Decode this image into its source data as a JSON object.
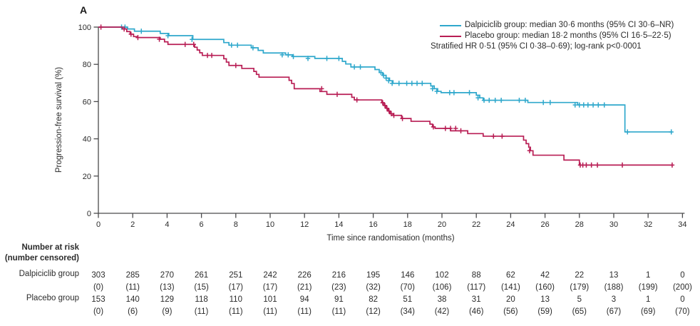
{
  "panel_label": "A",
  "legend": {
    "entries": [
      {
        "label": "Dalpiciclib group: median 30·6 months (95% CI 30·6–NR)",
        "color": "#2fa8cc"
      },
      {
        "label": "Placebo group: median 18·2 months (95% CI 16·5–22·5)",
        "color": "#b81d54"
      }
    ],
    "note": "Stratified HR 0·51 (95% CI 0·38–0·69); log-rank p<0·0001"
  },
  "chart_data": {
    "type": "line",
    "subtype": "kaplan-meier-step",
    "xlabel": "Time since randomisation (months)",
    "ylabel": "Progression-free survival (%)",
    "xlim": [
      0,
      34
    ],
    "ylim": [
      0,
      100
    ],
    "x_ticks": [
      0,
      2,
      4,
      6,
      8,
      10,
      12,
      14,
      16,
      18,
      20,
      22,
      24,
      26,
      28,
      30,
      32,
      34
    ],
    "y_ticks": [
      0,
      20,
      40,
      60,
      80,
      100
    ],
    "grid": false,
    "legend_position": "top-right",
    "axis_color": "#4a4a4c",
    "series": [
      {
        "name": "Dalpiciclib group",
        "color": "#2fa8cc",
        "end_t": 33.4,
        "steps": [
          [
            0,
            100
          ],
          [
            1.7,
            99
          ],
          [
            2.1,
            97.8
          ],
          [
            3.6,
            96.6
          ],
          [
            4.1,
            95.4
          ],
          [
            5.5,
            93.4
          ],
          [
            7.3,
            91.7
          ],
          [
            7.6,
            90.3
          ],
          [
            8.9,
            88.9
          ],
          [
            9.3,
            87.5
          ],
          [
            9.6,
            86.1
          ],
          [
            10.9,
            85.1
          ],
          [
            11.3,
            84.2
          ],
          [
            12.6,
            83.2
          ],
          [
            14.2,
            81.6
          ],
          [
            14.4,
            80.2
          ],
          [
            14.7,
            78.6
          ],
          [
            16.1,
            77.2
          ],
          [
            16.35,
            75.6
          ],
          [
            16.55,
            74.1
          ],
          [
            16.75,
            72.6
          ],
          [
            16.95,
            71.2
          ],
          [
            17.15,
            69.8
          ],
          [
            19.35,
            68.4
          ],
          [
            19.55,
            66.9
          ],
          [
            19.75,
            65.5
          ],
          [
            19.95,
            64.8
          ],
          [
            22,
            63.4
          ],
          [
            22.2,
            62
          ],
          [
            22.4,
            60.7
          ],
          [
            25,
            59.5
          ],
          [
            27.9,
            58.2
          ],
          [
            30.65,
            43.7
          ]
        ],
        "censors": [
          [
            1.35,
            100
          ],
          [
            1.55,
            100
          ],
          [
            2.5,
            97.8
          ],
          [
            4.05,
            95.4
          ],
          [
            5.45,
            93.4
          ],
          [
            7.75,
            90.3
          ],
          [
            8.1,
            90.3
          ],
          [
            9,
            88.9
          ],
          [
            10.7,
            85.1
          ],
          [
            11.05,
            85.1
          ],
          [
            11.35,
            84.2
          ],
          [
            12.2,
            83.2
          ],
          [
            13.3,
            83.2
          ],
          [
            14,
            83.2
          ],
          [
            14.9,
            78.6
          ],
          [
            15.25,
            78.6
          ],
          [
            16.45,
            75.6
          ],
          [
            16.6,
            74.1
          ],
          [
            16.75,
            72.6
          ],
          [
            16.9,
            71.2
          ],
          [
            17.1,
            69.8
          ],
          [
            17.5,
            69.8
          ],
          [
            17.95,
            69.8
          ],
          [
            18.25,
            69.8
          ],
          [
            18.55,
            69.8
          ],
          [
            18.85,
            69.8
          ],
          [
            19.45,
            66.9
          ],
          [
            19.7,
            65.5
          ],
          [
            20.45,
            64.8
          ],
          [
            20.7,
            64.8
          ],
          [
            21.6,
            64.8
          ],
          [
            22.1,
            62
          ],
          [
            22.45,
            60.7
          ],
          [
            22.75,
            60.7
          ],
          [
            23.1,
            60.7
          ],
          [
            23.45,
            60.7
          ],
          [
            24.5,
            60.7
          ],
          [
            24.85,
            60.7
          ],
          [
            25.9,
            59.5
          ],
          [
            26.3,
            59.5
          ],
          [
            27.75,
            58.2
          ],
          [
            28,
            58.2
          ],
          [
            28.25,
            58.2
          ],
          [
            28.5,
            58.2
          ],
          [
            28.8,
            58.2
          ],
          [
            29.1,
            58.2
          ],
          [
            29.45,
            58.2
          ],
          [
            30.8,
            43.7
          ],
          [
            33.35,
            43.7
          ]
        ]
      },
      {
        "name": "Placebo group",
        "color": "#b81d54",
        "end_t": 33.45,
        "steps": [
          [
            0,
            100
          ],
          [
            1.4,
            99
          ],
          [
            1.65,
            97.6
          ],
          [
            1.85,
            96.2
          ],
          [
            2.05,
            94.9
          ],
          [
            2.25,
            94.4
          ],
          [
            3.6,
            93.5
          ],
          [
            3.85,
            92.1
          ],
          [
            4.05,
            90.7
          ],
          [
            5.6,
            89.2
          ],
          [
            5.75,
            87.7
          ],
          [
            5.9,
            86.2
          ],
          [
            6.05,
            84.8
          ],
          [
            7.3,
            83
          ],
          [
            7.45,
            81.2
          ],
          [
            7.6,
            79.4
          ],
          [
            8.35,
            77.8
          ],
          [
            9.05,
            76.2
          ],
          [
            9.2,
            74.6
          ],
          [
            9.35,
            73.1
          ],
          [
            11.1,
            71.4
          ],
          [
            11.25,
            69.7
          ],
          [
            11.4,
            66.9
          ],
          [
            12.9,
            65.4
          ],
          [
            13.3,
            63.9
          ],
          [
            14.75,
            62.3
          ],
          [
            14.9,
            60.9
          ],
          [
            16.5,
            59.4
          ],
          [
            16.62,
            57.9
          ],
          [
            16.74,
            56.4
          ],
          [
            16.86,
            54.9
          ],
          [
            16.98,
            53.5
          ],
          [
            17.15,
            52.6
          ],
          [
            17.65,
            50.9
          ],
          [
            18.2,
            49.4
          ],
          [
            19.3,
            47.9
          ],
          [
            19.45,
            46.4
          ],
          [
            19.6,
            45.6
          ],
          [
            20.5,
            44.3
          ],
          [
            21.5,
            42.8
          ],
          [
            22.4,
            41.4
          ],
          [
            24.75,
            39.3
          ],
          [
            24.9,
            37.4
          ],
          [
            25.05,
            35.5
          ],
          [
            25.15,
            33.6
          ],
          [
            25.3,
            31.2
          ],
          [
            27.1,
            28.6
          ],
          [
            28,
            25.9
          ]
        ],
        "censors": [
          [
            0.15,
            100
          ],
          [
            1.5,
            99
          ],
          [
            1.9,
            96.2
          ],
          [
            2.3,
            94.4
          ],
          [
            3.55,
            93.5
          ],
          [
            5.05,
            90.7
          ],
          [
            5.55,
            90.7
          ],
          [
            6.35,
            84.8
          ],
          [
            6.6,
            84.8
          ],
          [
            8,
            79.4
          ],
          [
            13,
            66.9
          ],
          [
            13.9,
            63.9
          ],
          [
            15.05,
            60.9
          ],
          [
            16.55,
            59.4
          ],
          [
            16.68,
            57.9
          ],
          [
            16.8,
            56.4
          ],
          [
            16.92,
            54.9
          ],
          [
            17.05,
            53.5
          ],
          [
            17.2,
            52.6
          ],
          [
            17.7,
            50.9
          ],
          [
            19.5,
            46.4
          ],
          [
            20.2,
            45.6
          ],
          [
            20.5,
            45.6
          ],
          [
            20.8,
            45.6
          ],
          [
            21.1,
            44.3
          ],
          [
            23,
            41.4
          ],
          [
            23.5,
            41.4
          ],
          [
            25.1,
            33.6
          ],
          [
            28.05,
            25.9
          ],
          [
            28.2,
            25.9
          ],
          [
            28.4,
            25.9
          ],
          [
            28.7,
            25.9
          ],
          [
            29.05,
            25.9
          ],
          [
            30.5,
            25.9
          ],
          [
            33.4,
            25.9
          ]
        ]
      }
    ]
  },
  "risk_table": {
    "header_line1": "Number at risk",
    "header_line2": "(number censored)",
    "time_points": [
      0,
      2,
      4,
      6,
      8,
      10,
      12,
      14,
      16,
      18,
      20,
      22,
      24,
      26,
      28,
      30,
      32,
      34
    ],
    "rows": [
      {
        "label": "Dalpiciclib group",
        "at_risk": [
          303,
          285,
          270,
          261,
          251,
          242,
          226,
          216,
          195,
          146,
          102,
          88,
          62,
          42,
          22,
          13,
          1,
          0
        ],
        "censored": [
          0,
          11,
          13,
          15,
          17,
          17,
          21,
          23,
          32,
          70,
          106,
          117,
          141,
          160,
          179,
          188,
          199,
          200
        ]
      },
      {
        "label": "Placebo group",
        "at_risk": [
          153,
          140,
          129,
          118,
          110,
          101,
          94,
          91,
          82,
          51,
          38,
          31,
          20,
          13,
          5,
          3,
          1,
          0
        ],
        "censored": [
          0,
          6,
          9,
          11,
          11,
          11,
          11,
          11,
          12,
          34,
          42,
          46,
          56,
          59,
          65,
          67,
          69,
          70
        ]
      }
    ]
  }
}
